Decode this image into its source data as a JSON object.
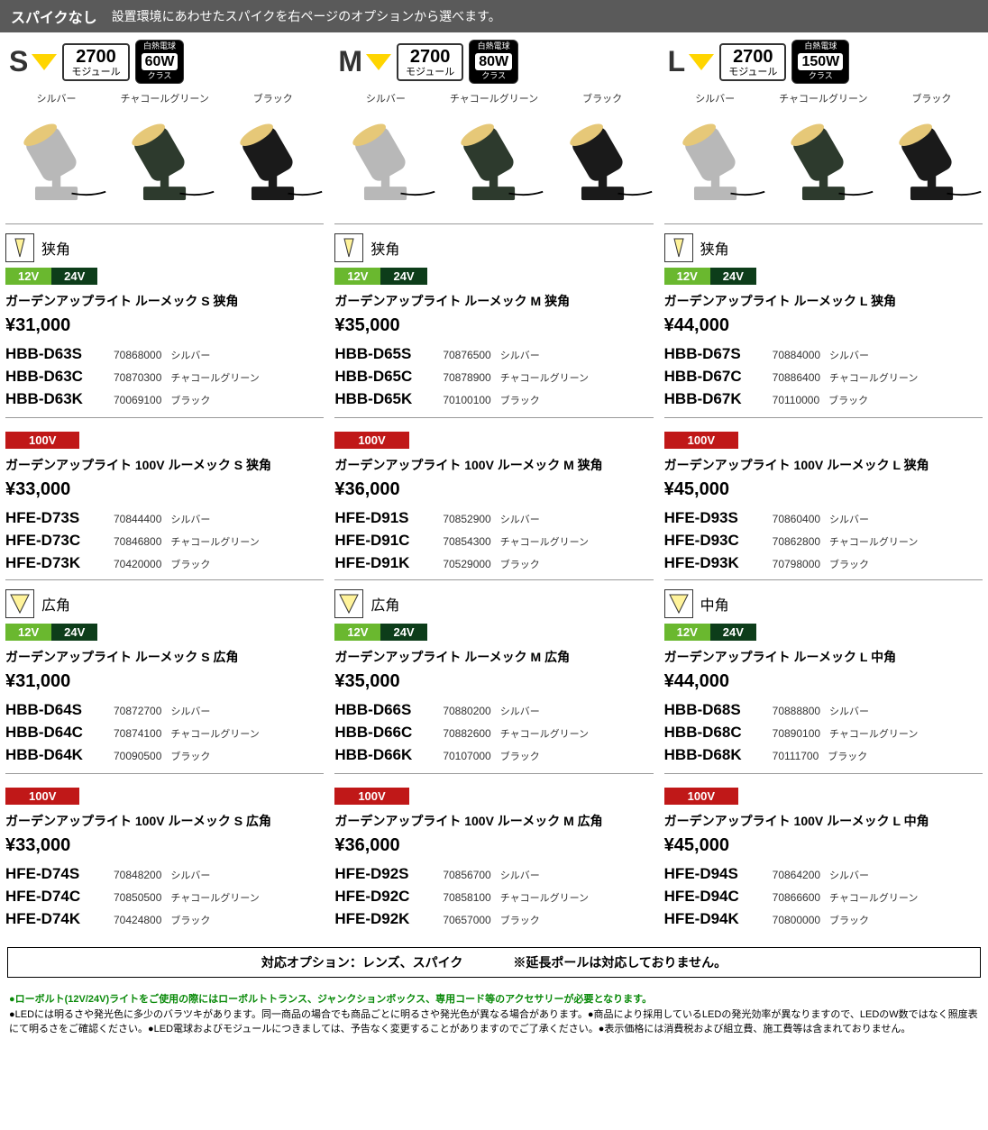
{
  "header": {
    "title": "スパイクなし",
    "subtitle": "設置環境にあわせたスパイクを右ページのオプションから選べます。"
  },
  "kelvin_label": {
    "value": "2700",
    "unit": "モジュール"
  },
  "size_headers": {
    "s": {
      "label": "S",
      "watt_top": "白熱電球",
      "watt_val": "60W",
      "watt_bot": "クラス"
    },
    "m": {
      "label": "M",
      "watt_top": "白熱電球",
      "watt_val": "80W",
      "watt_bot": "クラス"
    },
    "l": {
      "label": "L",
      "watt_top": "白熱電球",
      "watt_val": "150W",
      "watt_bot": "クラス"
    }
  },
  "color_labels": {
    "silver": "シルバー",
    "charcoal": "チャコールグリーン",
    "black": "ブラック"
  },
  "angle_labels": {
    "narrow": "狭角",
    "wide": "広角",
    "mid": "中角"
  },
  "volt_labels": {
    "v12": "12V",
    "v24": "24V",
    "v100": "100V"
  },
  "products": {
    "s": {
      "narrow_lv": {
        "name": "ガーデンアップライト ルーメック S 狭角",
        "price": "¥31,000",
        "skus": [
          {
            "code": "HBB-D63S",
            "num": "70868000",
            "color": "シルバー"
          },
          {
            "code": "HBB-D63C",
            "num": "70870300",
            "color": "チャコールグリーン"
          },
          {
            "code": "HBB-D63K",
            "num": "70069100",
            "color": "ブラック"
          }
        ]
      },
      "narrow_hv": {
        "name": "ガーデンアップライト 100V ルーメック S 狭角",
        "price": "¥33,000",
        "skus": [
          {
            "code": "HFE-D73S",
            "num": "70844400",
            "color": "シルバー"
          },
          {
            "code": "HFE-D73C",
            "num": "70846800",
            "color": "チャコールグリーン"
          },
          {
            "code": "HFE-D73K",
            "num": "70420000",
            "color": "ブラック"
          }
        ]
      },
      "wide_lv": {
        "name": "ガーデンアップライト ルーメック S 広角",
        "price": "¥31,000",
        "skus": [
          {
            "code": "HBB-D64S",
            "num": "70872700",
            "color": "シルバー"
          },
          {
            "code": "HBB-D64C",
            "num": "70874100",
            "color": "チャコールグリーン"
          },
          {
            "code": "HBB-D64K",
            "num": "70090500",
            "color": "ブラック"
          }
        ]
      },
      "wide_hv": {
        "name": "ガーデンアップライト 100V ルーメック S 広角",
        "price": "¥33,000",
        "skus": [
          {
            "code": "HFE-D74S",
            "num": "70848200",
            "color": "シルバー"
          },
          {
            "code": "HFE-D74C",
            "num": "70850500",
            "color": "チャコールグリーン"
          },
          {
            "code": "HFE-D74K",
            "num": "70424800",
            "color": "ブラック"
          }
        ]
      }
    },
    "m": {
      "narrow_lv": {
        "name": "ガーデンアップライト ルーメック M 狭角",
        "price": "¥35,000",
        "skus": [
          {
            "code": "HBB-D65S",
            "num": "70876500",
            "color": "シルバー"
          },
          {
            "code": "HBB-D65C",
            "num": "70878900",
            "color": "チャコールグリーン"
          },
          {
            "code": "HBB-D65K",
            "num": "70100100",
            "color": "ブラック"
          }
        ]
      },
      "narrow_hv": {
        "name": "ガーデンアップライト 100V ルーメック M 狭角",
        "price": "¥36,000",
        "skus": [
          {
            "code": "HFE-D91S",
            "num": "70852900",
            "color": "シルバー"
          },
          {
            "code": "HFE-D91C",
            "num": "70854300",
            "color": "チャコールグリーン"
          },
          {
            "code": "HFE-D91K",
            "num": "70529000",
            "color": "ブラック"
          }
        ]
      },
      "wide_lv": {
        "name": "ガーデンアップライト ルーメック M 広角",
        "price": "¥35,000",
        "skus": [
          {
            "code": "HBB-D66S",
            "num": "70880200",
            "color": "シルバー"
          },
          {
            "code": "HBB-D66C",
            "num": "70882600",
            "color": "チャコールグリーン"
          },
          {
            "code": "HBB-D66K",
            "num": "70107000",
            "color": "ブラック"
          }
        ]
      },
      "wide_hv": {
        "name": "ガーデンアップライト 100V ルーメック M 広角",
        "price": "¥36,000",
        "skus": [
          {
            "code": "HFE-D92S",
            "num": "70856700",
            "color": "シルバー"
          },
          {
            "code": "HFE-D92C",
            "num": "70858100",
            "color": "チャコールグリーン"
          },
          {
            "code": "HFE-D92K",
            "num": "70657000",
            "color": "ブラック"
          }
        ]
      }
    },
    "l": {
      "narrow_lv": {
        "name": "ガーデンアップライト ルーメック L 狭角",
        "price": "¥44,000",
        "skus": [
          {
            "code": "HBB-D67S",
            "num": "70884000",
            "color": "シルバー"
          },
          {
            "code": "HBB-D67C",
            "num": "70886400",
            "color": "チャコールグリーン"
          },
          {
            "code": "HBB-D67K",
            "num": "70110000",
            "color": "ブラック"
          }
        ]
      },
      "narrow_hv": {
        "name": "ガーデンアップライト 100V ルーメック L 狭角",
        "price": "¥45,000",
        "skus": [
          {
            "code": "HFE-D93S",
            "num": "70860400",
            "color": "シルバー"
          },
          {
            "code": "HFE-D93C",
            "num": "70862800",
            "color": "チャコールグリーン"
          },
          {
            "code": "HFE-D93K",
            "num": "70798000",
            "color": "ブラック"
          }
        ]
      },
      "wide_lv": {
        "name": "ガーデンアップライト ルーメック L 中角",
        "price": "¥44,000",
        "skus": [
          {
            "code": "HBB-D68S",
            "num": "70888800",
            "color": "シルバー"
          },
          {
            "code": "HBB-D68C",
            "num": "70890100",
            "color": "チャコールグリーン"
          },
          {
            "code": "HBB-D68K",
            "num": "70111700",
            "color": "ブラック"
          }
        ]
      },
      "wide_hv": {
        "name": "ガーデンアップライト 100V ルーメック L 中角",
        "price": "¥45,000",
        "skus": [
          {
            "code": "HFE-D94S",
            "num": "70864200",
            "color": "シルバー"
          },
          {
            "code": "HFE-D94C",
            "num": "70866600",
            "color": "チャコールグリーン"
          },
          {
            "code": "HFE-D94K",
            "num": "70800000",
            "color": "ブラック"
          }
        ]
      }
    }
  },
  "footer_option": "対応オプション：レンズ、スパイク　　　　※延長ポールは対応しておりません。",
  "footer_notes": {
    "green": "●ローボルト(12V/24V)ライトをご使用の際にはローボルトトランス、ジャンクションボックス、専用コード等のアクセサリーが必要となります。",
    "black": "●LEDには明るさや発光色に多少のバラツキがあります。同一商品の場合でも商品ごとに明るさや発光色が異なる場合があります。●商品により採用しているLEDの発光効率が異なりますので、LEDのW数ではなく照度表にて明るさをご確認ください。●LED電球およびモジュールにつきましては、予告なく変更することがありますのでご了承ください。●表示価格には消費税および組立費、施工費等は含まれておりません。"
  },
  "style": {
    "colors": {
      "header_bg": "#5a5a5a",
      "v12": "#6ab82f",
      "v24": "#0d3d1a",
      "v100": "#c01818",
      "green_text": "#0a8a0a",
      "divider": "#999999"
    },
    "light_colors": {
      "silver": "#b8b8b8",
      "charcoal": "#2d3a2d",
      "black": "#1a1a1a",
      "lens": "#e6c878"
    },
    "fontsize": {
      "header_title": 16,
      "size_label": 32,
      "price": 20,
      "sku_code": 17,
      "sku_num": 12,
      "prod_name": 14,
      "footer": 11
    }
  }
}
